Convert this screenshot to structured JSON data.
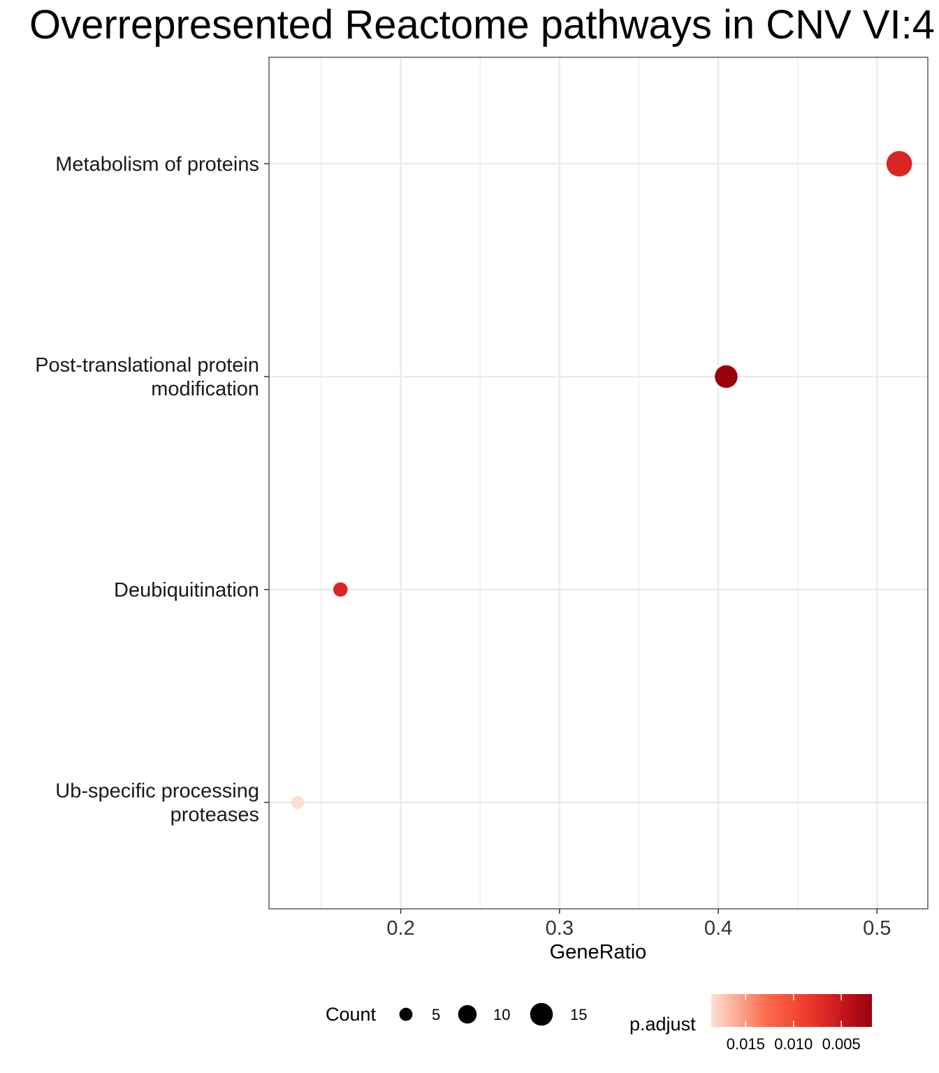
{
  "chart_data": {
    "type": "scatter",
    "title": "Overrepresented Reactome pathways in CNV VI:4",
    "xlabel": "GeneRatio",
    "ylabel": "",
    "xlim": [
      0.117,
      0.532
    ],
    "x_ticks": [
      {
        "value": 0.2,
        "label": "0.2"
      },
      {
        "value": 0.3,
        "label": "0.3"
      },
      {
        "value": 0.4,
        "label": "0.4"
      },
      {
        "value": 0.5,
        "label": "0.5"
      }
    ],
    "categories": [
      {
        "lines": [
          "Metabolism of proteins"
        ]
      },
      {
        "lines": [
          "Post-translational protein",
          "modification"
        ]
      },
      {
        "lines": [
          "Deubiquitination"
        ]
      },
      {
        "lines": [
          "Ub-specific processing",
          "proteases"
        ]
      }
    ],
    "points": [
      {
        "category_index": 0,
        "gene_ratio": 0.514,
        "count": 19,
        "p_adjust": 0.0065
      },
      {
        "category_index": 1,
        "gene_ratio": 0.405,
        "count": 15,
        "p_adjust": 0.002
      },
      {
        "category_index": 2,
        "gene_ratio": 0.162,
        "count": 6,
        "p_adjust": 0.0065
      },
      {
        "category_index": 3,
        "gene_ratio": 0.135,
        "count": 5,
        "p_adjust": 0.0185
      }
    ],
    "grid": true,
    "legend_position": "bottom",
    "size_legend": {
      "title": "Count",
      "entries": [
        {
          "value": 5,
          "label": "5"
        },
        {
          "value": 10,
          "label": "10"
        },
        {
          "value": 15,
          "label": "15"
        }
      ]
    },
    "color_legend": {
      "title": "p.adjust",
      "domain": [
        0.0186,
        0.0018
      ],
      "colors": [
        "#fee0d2",
        "#fb6a4a",
        "#ef3b2c",
        "#cb181d",
        "#99000d"
      ],
      "ticks": [
        {
          "value": 0.015,
          "label": "0.015"
        },
        {
          "value": 0.01,
          "label": "0.010"
        },
        {
          "value": 0.005,
          "label": "0.005"
        }
      ]
    }
  }
}
